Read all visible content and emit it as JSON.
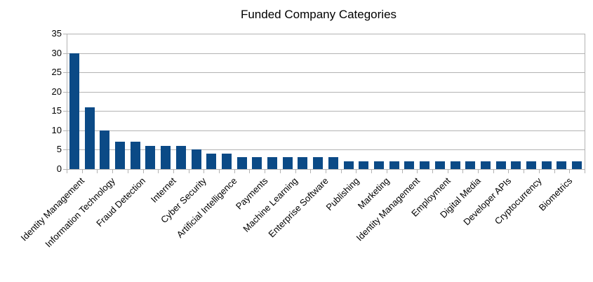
{
  "title": "Funded Company Categories",
  "chart_data": {
    "type": "bar",
    "title": "Funded Company Categories",
    "xlabel": "",
    "ylabel": "",
    "ylim": [
      0,
      35
    ],
    "ytick_interval": 5,
    "ytick_labels": [
      "0",
      "5",
      "10",
      "15",
      "20",
      "25",
      "30",
      "35"
    ],
    "grid": true,
    "legend": false,
    "bar_color": "#0b4a86",
    "grid_color": "#b3b3b3",
    "axis_color": "#b3b3b3",
    "text_color": "#000000",
    "label_every": 2,
    "label_rotation_deg": 45,
    "categories": [
      "Identity Management",
      "Information Technology",
      "Fraud Detection",
      "Internet",
      "Cyber Security",
      "Artificial Intelligence",
      "Payments",
      "Machine Learning",
      "Enterprise Software",
      "Publishing",
      "Marketing",
      "Identity Management",
      "Employment",
      "Digital Media",
      "Developer APIs",
      "Cryptocurrency",
      "Biometrics"
    ],
    "values": [
      30,
      16,
      10,
      7,
      7,
      6,
      6,
      6,
      5,
      4,
      4,
      3,
      3,
      3,
      3,
      3,
      3,
      3,
      2,
      2,
      2,
      2,
      2,
      2,
      2,
      2,
      2,
      2,
      2,
      2,
      2,
      2,
      2,
      2
    ]
  }
}
